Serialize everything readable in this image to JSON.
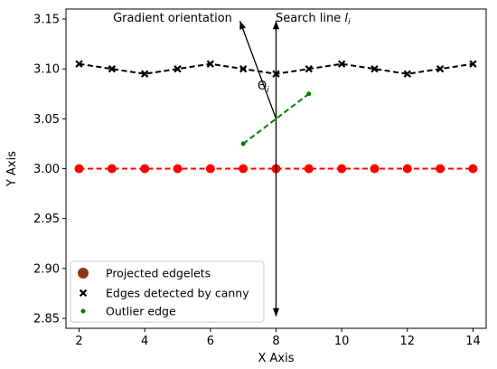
{
  "chart_data": {
    "type": "line",
    "xlabel": "X Axis",
    "ylabel": "Y Axis",
    "xlim": [
      1.6,
      14.4
    ],
    "ylim": [
      2.84,
      3.16
    ],
    "xticks": [
      2,
      4,
      6,
      8,
      10,
      12,
      14
    ],
    "yticks": [
      2.85,
      2.9,
      2.95,
      3.0,
      3.05,
      3.1,
      3.15
    ],
    "ytick_labels": [
      "2.85",
      "2.90",
      "2.95",
      "3.00",
      "3.05",
      "3.10",
      "3.15"
    ],
    "grid": false,
    "legend_position": "lower-left",
    "series": [
      {
        "name": "Projected edgelets",
        "marker": "circle",
        "color": "#ff0000",
        "legend_color": "#8b3a1a",
        "line_style": "dashed",
        "x": [
          2,
          3,
          4,
          5,
          6,
          7,
          8,
          9,
          10,
          11,
          12,
          13,
          14
        ],
        "y": [
          3.0,
          3.0,
          3.0,
          3.0,
          3.0,
          3.0,
          3.0,
          3.0,
          3.0,
          3.0,
          3.0,
          3.0,
          3.0
        ]
      },
      {
        "name": "Edges detected by canny",
        "marker": "x",
        "color": "#000000",
        "line_style": "dashed",
        "x": [
          2,
          3,
          4,
          5,
          6,
          7,
          8,
          9,
          10,
          11,
          12,
          13,
          14
        ],
        "y": [
          3.105,
          3.1,
          3.095,
          3.1,
          3.105,
          3.1,
          3.095,
          3.1,
          3.105,
          3.1,
          3.095,
          3.1,
          3.105
        ]
      },
      {
        "name": "Outlier edge",
        "marker": "dot",
        "color": "#008000",
        "line_style": "dashed",
        "x": [
          7,
          9
        ],
        "y": [
          3.025,
          3.075
        ]
      }
    ],
    "annotations": {
      "gradient_label": "Gradient orientation",
      "search_label": "Search line ",
      "search_label_var": "l",
      "search_label_sub": "i",
      "angle_label": "Θ",
      "angle_label_sub": "i",
      "gradient_arrow": {
        "from": [
          8,
          3.05
        ],
        "to": [
          6.9,
          3.148
        ]
      },
      "search_line": {
        "x": 8,
        "y_top": 3.148,
        "y_bottom": 2.852
      }
    }
  }
}
